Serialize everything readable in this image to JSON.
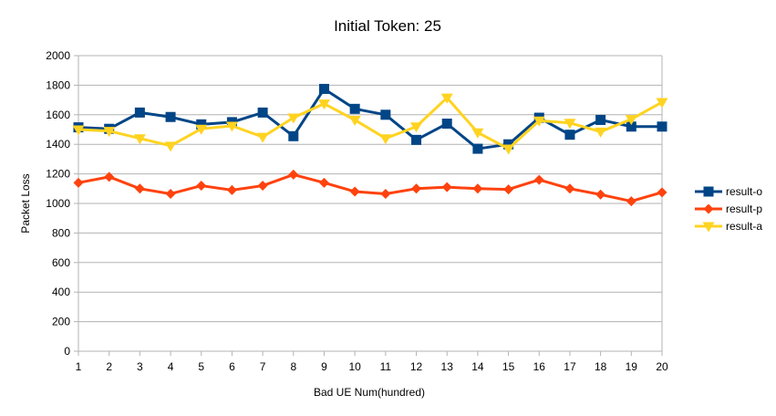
{
  "chart_data": {
    "type": "line",
    "title": "Initial Token: 25",
    "xlabel": "Bad UE Num(hundred)",
    "ylabel": "Packet Loss",
    "x": [
      1,
      2,
      3,
      4,
      5,
      6,
      7,
      8,
      9,
      10,
      11,
      12,
      13,
      14,
      15,
      16,
      17,
      18,
      19,
      20
    ],
    "x_tick_labels": [
      "1",
      "2",
      "3",
      "4",
      "5",
      "6",
      "7",
      "8",
      "9",
      "10",
      "11",
      "12",
      "13",
      "14",
      "15",
      "16",
      "17",
      "18",
      "19",
      "20"
    ],
    "ylim": [
      0,
      2000
    ],
    "y_ticks": [
      0,
      200,
      400,
      600,
      800,
      1000,
      1200,
      1400,
      1600,
      1800,
      2000
    ],
    "y_tick_labels": [
      "0",
      "200",
      "400",
      "600",
      "800",
      "1000",
      "1200",
      "1400",
      "1600",
      "1800",
      "2000"
    ],
    "grid": "horizontal",
    "legend_position": "right",
    "series": [
      {
        "name": "result-o",
        "color": "#004586",
        "marker": "square",
        "values": [
          1515,
          1505,
          1615,
          1585,
          1535,
          1550,
          1615,
          1455,
          1775,
          1640,
          1600,
          1430,
          1540,
          1370,
          1400,
          1580,
          1465,
          1565,
          1520,
          1520
        ]
      },
      {
        "name": "result-p",
        "color": "#ff420e",
        "marker": "diamond",
        "values": [
          1140,
          1180,
          1100,
          1065,
          1120,
          1090,
          1120,
          1195,
          1140,
          1080,
          1065,
          1100,
          1110,
          1100,
          1095,
          1160,
          1100,
          1060,
          1015,
          1075
        ]
      },
      {
        "name": "result-a",
        "color": "#ffd320",
        "marker": "triangle-down",
        "values": [
          1500,
          1490,
          1440,
          1390,
          1505,
          1525,
          1450,
          1580,
          1675,
          1565,
          1440,
          1520,
          1715,
          1480,
          1370,
          1560,
          1545,
          1485,
          1570,
          1685
        ]
      }
    ]
  }
}
